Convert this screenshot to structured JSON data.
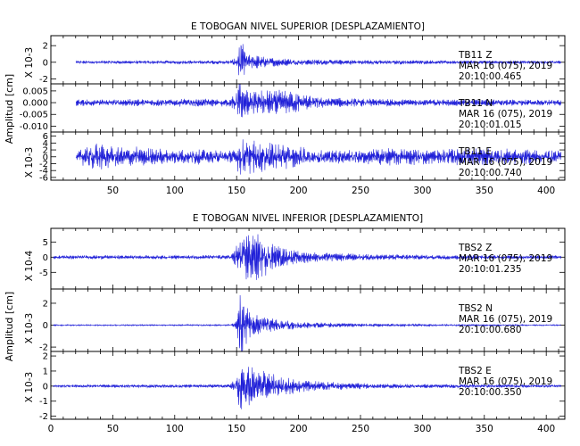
{
  "chart_data": [
    {
      "type": "line",
      "title": "E TOBOGAN NIVEL SUPERIOR [DESPLAZAMIENTO]",
      "ylabel": "Amplitud [cm]",
      "xlim": [
        0,
        415
      ],
      "xticks": [
        50,
        100,
        150,
        200,
        250,
        300,
        350,
        400
      ],
      "line_color": "#1f1fd8",
      "series": [
        {
          "station": "TB11",
          "component": "Z",
          "date": "MAR 16 (075), 2019",
          "time": "20:10:00.465",
          "scale_label": "X 10-3",
          "ylim": [
            -2.6,
            3.2
          ],
          "yticks": [
            2,
            0,
            -2
          ],
          "yticklabels": [
            "2",
            "0",
            "-2"
          ],
          "x": [
            20,
            145,
            150,
            152,
            154,
            156,
            158,
            160,
            165,
            170,
            180,
            200,
            250,
            300,
            350,
            412
          ],
          "envelope": [
            0.15,
            0.2,
            0.6,
            1.8,
            2.3,
            1.5,
            1.2,
            0.9,
            0.8,
            0.6,
            0.45,
            0.3,
            0.25,
            0.2,
            0.2,
            0.15
          ]
        },
        {
          "station": "TB11",
          "component": "N",
          "date": "MAR 16 (075), 2019",
          "time": "20:10:01.015",
          "scale_label": "",
          "ylim": [
            -0.0125,
            0.008
          ],
          "yticks": [
            0.005,
            0,
            -0.005,
            -0.01
          ],
          "yticklabels": [
            "0.005",
            "0.000",
            "-0.005",
            "-0.010"
          ],
          "x": [
            20,
            145,
            150,
            152,
            154,
            158,
            165,
            175,
            185,
            195,
            205,
            215,
            250,
            300,
            350,
            412
          ],
          "envelope": [
            0.0012,
            0.0015,
            0.004,
            0.0095,
            0.007,
            0.005,
            0.0045,
            0.005,
            0.0048,
            0.004,
            0.003,
            0.002,
            0.0015,
            0.0012,
            0.0012,
            0.0011
          ]
        },
        {
          "station": "TB11",
          "component": "E",
          "date": "MAR 16 (075), 2019",
          "time": "20:10:00.740",
          "scale_label": "X 10-3",
          "ylim": [
            -6.8,
            7.2
          ],
          "yticks": [
            6,
            4,
            2,
            0,
            -2,
            -4,
            -6
          ],
          "yticklabels": [
            "6",
            "4",
            "2",
            "0",
            "-2",
            "-4",
            "-6"
          ],
          "x": [
            20,
            30,
            40,
            50,
            60,
            70,
            80,
            100,
            120,
            140,
            150,
            152,
            155,
            160,
            170,
            180,
            190,
            200,
            210,
            230,
            250,
            280,
            310,
            340,
            370,
            412
          ],
          "envelope": [
            1.2,
            2.8,
            3.6,
            3.2,
            2.4,
            2.6,
            2.2,
            1.8,
            1.9,
            1.5,
            1.8,
            5.5,
            4.5,
            4.2,
            3.8,
            3.5,
            3,
            2.6,
            2,
            1.8,
            1.8,
            2.2,
            1.8,
            2.2,
            2,
            1.6
          ]
        }
      ]
    },
    {
      "type": "line",
      "title": "E TOBOGAN NIVEL INFERIOR [DESPLAZAMIENTO]",
      "ylabel": "Amplitud [cm]",
      "xlim": [
        0,
        415
      ],
      "xticks": [
        0,
        50,
        100,
        150,
        200,
        250,
        300,
        350,
        400
      ],
      "line_color": "#1f1fd8",
      "series": [
        {
          "station": "TBS2",
          "component": "Z",
          "date": "MAR 16 (075), 2019",
          "time": "20:10:01.235",
          "scale_label": "X 10-4",
          "ylim": [
            -10.5,
            9.5
          ],
          "yticks": [
            5,
            0,
            -5
          ],
          "yticklabels": [
            "5",
            "0",
            "-5"
          ],
          "x": [
            0,
            145,
            150,
            155,
            160,
            165,
            170,
            175,
            180,
            185,
            195,
            210,
            230,
            260,
            300,
            350,
            412
          ],
          "envelope": [
            0.5,
            0.6,
            3.5,
            6,
            8.2,
            7,
            6,
            5,
            4,
            3,
            2,
            1.5,
            1.2,
            0.9,
            0.7,
            0.6,
            0.5
          ]
        },
        {
          "station": "TBS2",
          "component": "N",
          "date": "MAR 16 (075), 2019",
          "time": "20:10:00.680",
          "scale_label": "X 10-3",
          "ylim": [
            -2.4,
            3.3
          ],
          "yticks": [
            2,
            0,
            -2
          ],
          "yticklabels": [
            "2",
            "0",
            "-2"
          ],
          "x": [
            0,
            145,
            150,
            152,
            154,
            157,
            162,
            170,
            185,
            200,
            220,
            260,
            300,
            350,
            412
          ],
          "envelope": [
            0.05,
            0.06,
            0.4,
            2.5,
            3,
            1.8,
            1,
            0.7,
            0.45,
            0.3,
            0.2,
            0.12,
            0.08,
            0.06,
            0.05
          ]
        },
        {
          "station": "TBS2",
          "component": "E",
          "date": "MAR 16 (075), 2019",
          "time": "20:10:00.350",
          "scale_label": "X 10-3",
          "ylim": [
            -2.2,
            2.3
          ],
          "yticks": [
            2,
            1,
            0,
            -1,
            -2
          ],
          "yticklabels": [
            "2",
            "1",
            "0",
            "-1",
            "-2"
          ],
          "x": [
            0,
            145,
            150,
            152,
            155,
            160,
            170,
            180,
            190,
            200,
            220,
            260,
            300,
            350,
            412
          ],
          "envelope": [
            0.08,
            0.1,
            0.6,
            1.4,
            1.6,
            1.2,
            0.9,
            0.7,
            0.5,
            0.4,
            0.25,
            0.15,
            0.12,
            0.1,
            0.08
          ]
        }
      ]
    }
  ]
}
